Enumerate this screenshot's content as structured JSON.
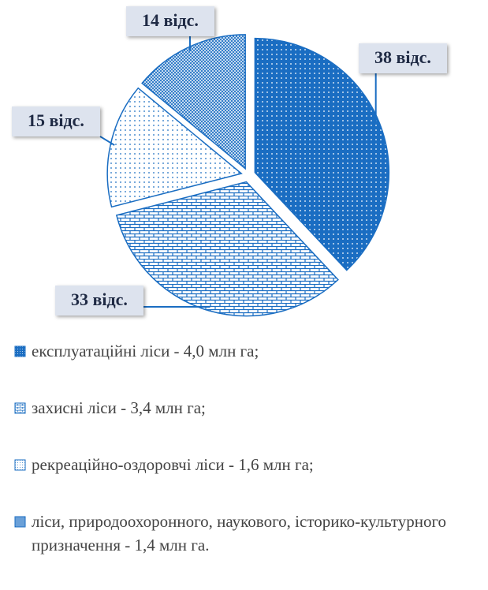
{
  "chart_data": {
    "type": "pie",
    "categories": [
      "експлуатаційні ліси - 4,0 млн га;",
      "захисні ліси - 3,4 млн га;",
      "рекреаційно-оздоровчі ліси - 1,6 млн га;",
      "ліси, природоохоронного, наукового, історико-культурного призначення - 1,4 млн га."
    ],
    "values": [
      38,
      33,
      15,
      14
    ],
    "value_labels": [
      "38 відс.",
      "33 відс.",
      "15 відс.",
      "14 відс."
    ],
    "color": "#1a6dc2"
  }
}
